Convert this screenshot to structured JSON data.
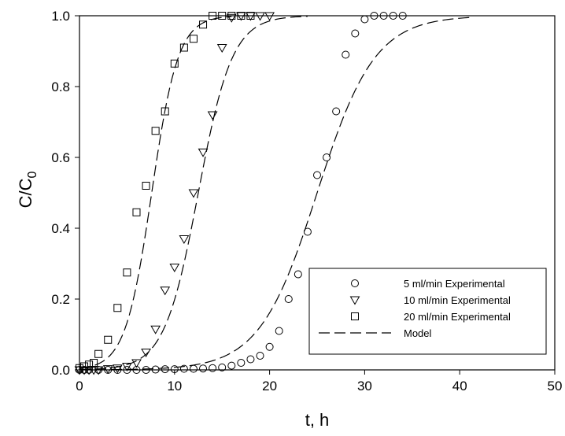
{
  "chart_data": {
    "type": "scatter",
    "xlabel": "t, h",
    "ylabel_main": "C/C",
    "ylabel_sub": "0",
    "xlim": [
      0,
      50
    ],
    "ylim": [
      0,
      1
    ],
    "x_ticks": [
      "0",
      "10",
      "20",
      "30",
      "40",
      "50"
    ],
    "y_ticks": [
      "0.0",
      "0.2",
      "0.4",
      "0.6",
      "0.8",
      "1.0"
    ],
    "grid": false,
    "legend_position": "bottom-right",
    "series": [
      {
        "name": "5 ml/min Experimental",
        "marker": "circle",
        "x": [
          0,
          0.5,
          1,
          2,
          3,
          4,
          5,
          6,
          7,
          8,
          9,
          10,
          11,
          12,
          13,
          14,
          15,
          16,
          17,
          18,
          19,
          20,
          21,
          22,
          23,
          24,
          25,
          26,
          27,
          28,
          29,
          30,
          31,
          32,
          33,
          34
        ],
        "y": [
          0,
          0,
          0,
          0,
          0,
          0,
          0,
          0,
          0,
          0.001,
          0.002,
          0.002,
          0.003,
          0.003,
          0.004,
          0.005,
          0.007,
          0.012,
          0.02,
          0.03,
          0.04,
          0.065,
          0.11,
          0.2,
          0.27,
          0.39,
          0.55,
          0.6,
          0.73,
          0.89,
          0.95,
          0.99,
          1.0,
          1.0,
          1.0,
          1.0
        ]
      },
      {
        "name": "10 ml/min Experimental",
        "marker": "triangle-down",
        "x": [
          0,
          0.5,
          1,
          1.5,
          2,
          3,
          4,
          5,
          6,
          7,
          8,
          9,
          10,
          11,
          12,
          13,
          14,
          15,
          16,
          17,
          18,
          19,
          20
        ],
        "y": [
          0,
          0,
          0,
          0,
          0,
          0.003,
          0.005,
          0.01,
          0.02,
          0.05,
          0.115,
          0.225,
          0.29,
          0.37,
          0.5,
          0.615,
          0.72,
          0.91,
          0.995,
          1.0,
          1.0,
          1.0,
          1.0
        ]
      },
      {
        "name": "20 ml/min Experimental",
        "marker": "square",
        "x": [
          0,
          0.5,
          1,
          1.5,
          2,
          3,
          4,
          5,
          6,
          7,
          8,
          9,
          10,
          11,
          12,
          13,
          14,
          15,
          16,
          17,
          18
        ],
        "y": [
          0.005,
          0.01,
          0.015,
          0.02,
          0.045,
          0.085,
          0.175,
          0.275,
          0.445,
          0.52,
          0.675,
          0.73,
          0.865,
          0.91,
          0.935,
          0.975,
          1.0,
          1.0,
          1.0,
          1.0,
          1.0
        ]
      },
      {
        "name": "Model",
        "marker": "dashed-line",
        "curves": [
          {
            "t50": 7.6,
            "k": 0.72,
            "x_end": 16
          },
          {
            "t50": 12.5,
            "k": 0.56,
            "x_end": 24
          },
          {
            "t50": 25.0,
            "k": 0.33,
            "x_end": 41
          }
        ]
      }
    ]
  }
}
